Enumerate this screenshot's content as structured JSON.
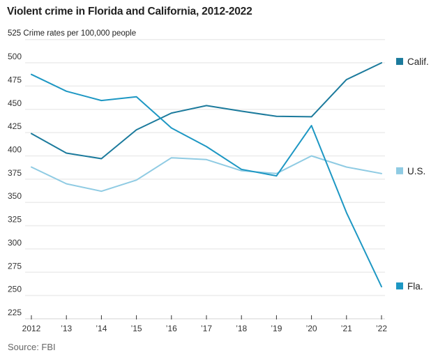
{
  "chart_data": {
    "type": "line",
    "title": "Violent crime in Florida and California, 2012-2022",
    "ylabel": "Crime rates per 100,000 people",
    "top_tick_label": "525",
    "xlabel": "",
    "source": "Source: FBI",
    "x": [
      2012,
      2013,
      2014,
      2015,
      2016,
      2017,
      2018,
      2019,
      2020,
      2021,
      2022
    ],
    "x_tick_labels": [
      "2012",
      "’13",
      "’14",
      "’15",
      "’16",
      "’17",
      "’18",
      "’19",
      "’20",
      "’21",
      "’22"
    ],
    "ylim": [
      225,
      525
    ],
    "y_ticks": [
      225,
      250,
      275,
      300,
      325,
      350,
      375,
      400,
      425,
      450,
      475,
      500
    ],
    "grid": true,
    "legend_placement": "right, inline at line ends",
    "series": [
      {
        "name": "Calif.",
        "color": "#1b7a9c",
        "values": [
          424,
          403,
          397,
          428,
          446,
          454,
          448,
          442.5,
          442,
          482,
          500
        ]
      },
      {
        "name": "U.S.",
        "color": "#8fcbe3",
        "values": [
          388,
          370,
          362,
          374,
          398,
          396,
          384,
          381,
          400,
          388,
          381
        ]
      },
      {
        "name": "Fla.",
        "color": "#1d97c3",
        "values": [
          487.5,
          469.5,
          459.5,
          463.5,
          430,
          410,
          385.5,
          378.5,
          432.5,
          339,
          259.5
        ]
      }
    ]
  }
}
